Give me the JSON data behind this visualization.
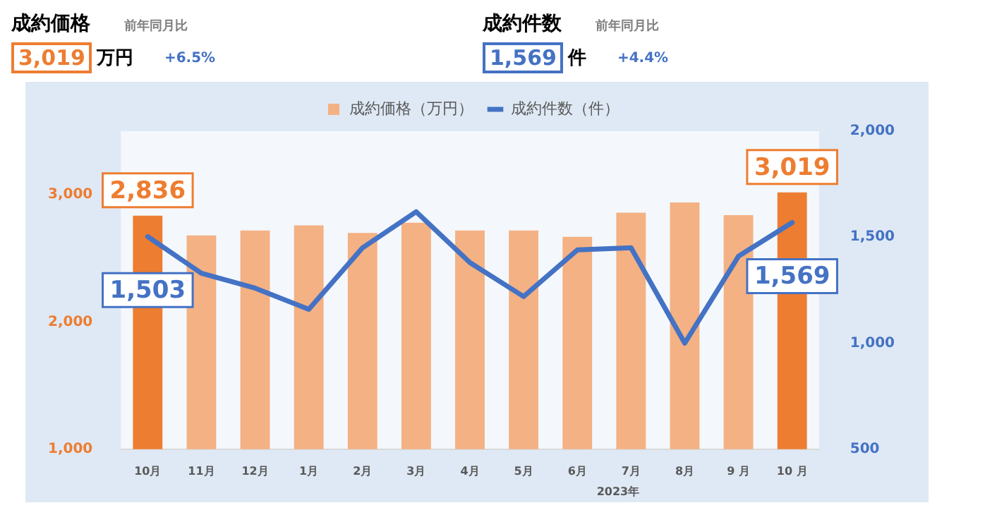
{
  "chart_data": {
    "type": "bar",
    "annotations": [
      "成約価格",
      "3,019",
      "万円",
      "前年同月比",
      "+6.5%",
      "成約件数",
      "1,569",
      "件",
      "前年同月比",
      "+4.4%",
      "2023年"
    ],
    "categories": [
      "10月",
      "11月",
      "12月",
      "1月",
      "2月",
      "3月",
      "4月",
      "5月",
      "6月",
      "7月",
      "8月",
      "9 月",
      "10 月"
    ],
    "series": [
      {
        "name": "成約価格（万円）",
        "color": "#f4b183",
        "colors": [
          "#ed7d31",
          "#f4b183",
          "#f4b183",
          "#f4b183",
          "#f4b183",
          "#f4b183",
          "#f4b183",
          "#f4b183",
          "#f4b183",
          "#f4b183",
          "#f4b183",
          "#f4b183",
          "#ed7d31"
        ],
        "values": [
          2836,
          2680,
          2720,
          2760,
          2700,
          2780,
          2720,
          2720,
          2670,
          2860,
          2940,
          2840,
          3019
        ],
        "value_labels": [
          "2,836",
          null,
          null,
          null,
          null,
          null,
          null,
          null,
          null,
          null,
          null,
          null,
          "3,019"
        ]
      },
      {
        "name": "成約件数（件）",
        "type": "line",
        "axis": "y2",
        "color": "#4472c4",
        "values": [
          1503,
          1330,
          1260,
          1160,
          1450,
          1620,
          1380,
          1220,
          1440,
          1450,
          1000,
          1410,
          1569
        ],
        "value_labels": [
          "1,503",
          null,
          null,
          null,
          null,
          null,
          null,
          null,
          null,
          null,
          null,
          null,
          "1,569"
        ]
      }
    ],
    "ylim": [
      1000,
      3500
    ],
    "yticks": [
      {
        "value": 1000,
        "label": "1,000"
      },
      {
        "value": 2000,
        "label": "2,000"
      },
      {
        "value": 3000,
        "label": "3,000"
      }
    ],
    "y2lim": [
      500,
      2000
    ],
    "y2ticks": [
      500,
      {
        "value": 1000,
        "label": "1,000"
      },
      {
        "value": 1500,
        "label": "1,500"
      },
      {
        "value": 2000,
        "label": "2,000"
      }
    ],
    "grid": false,
    "legend": "top",
    "marker": "none",
    "line_style": "solid"
  }
}
